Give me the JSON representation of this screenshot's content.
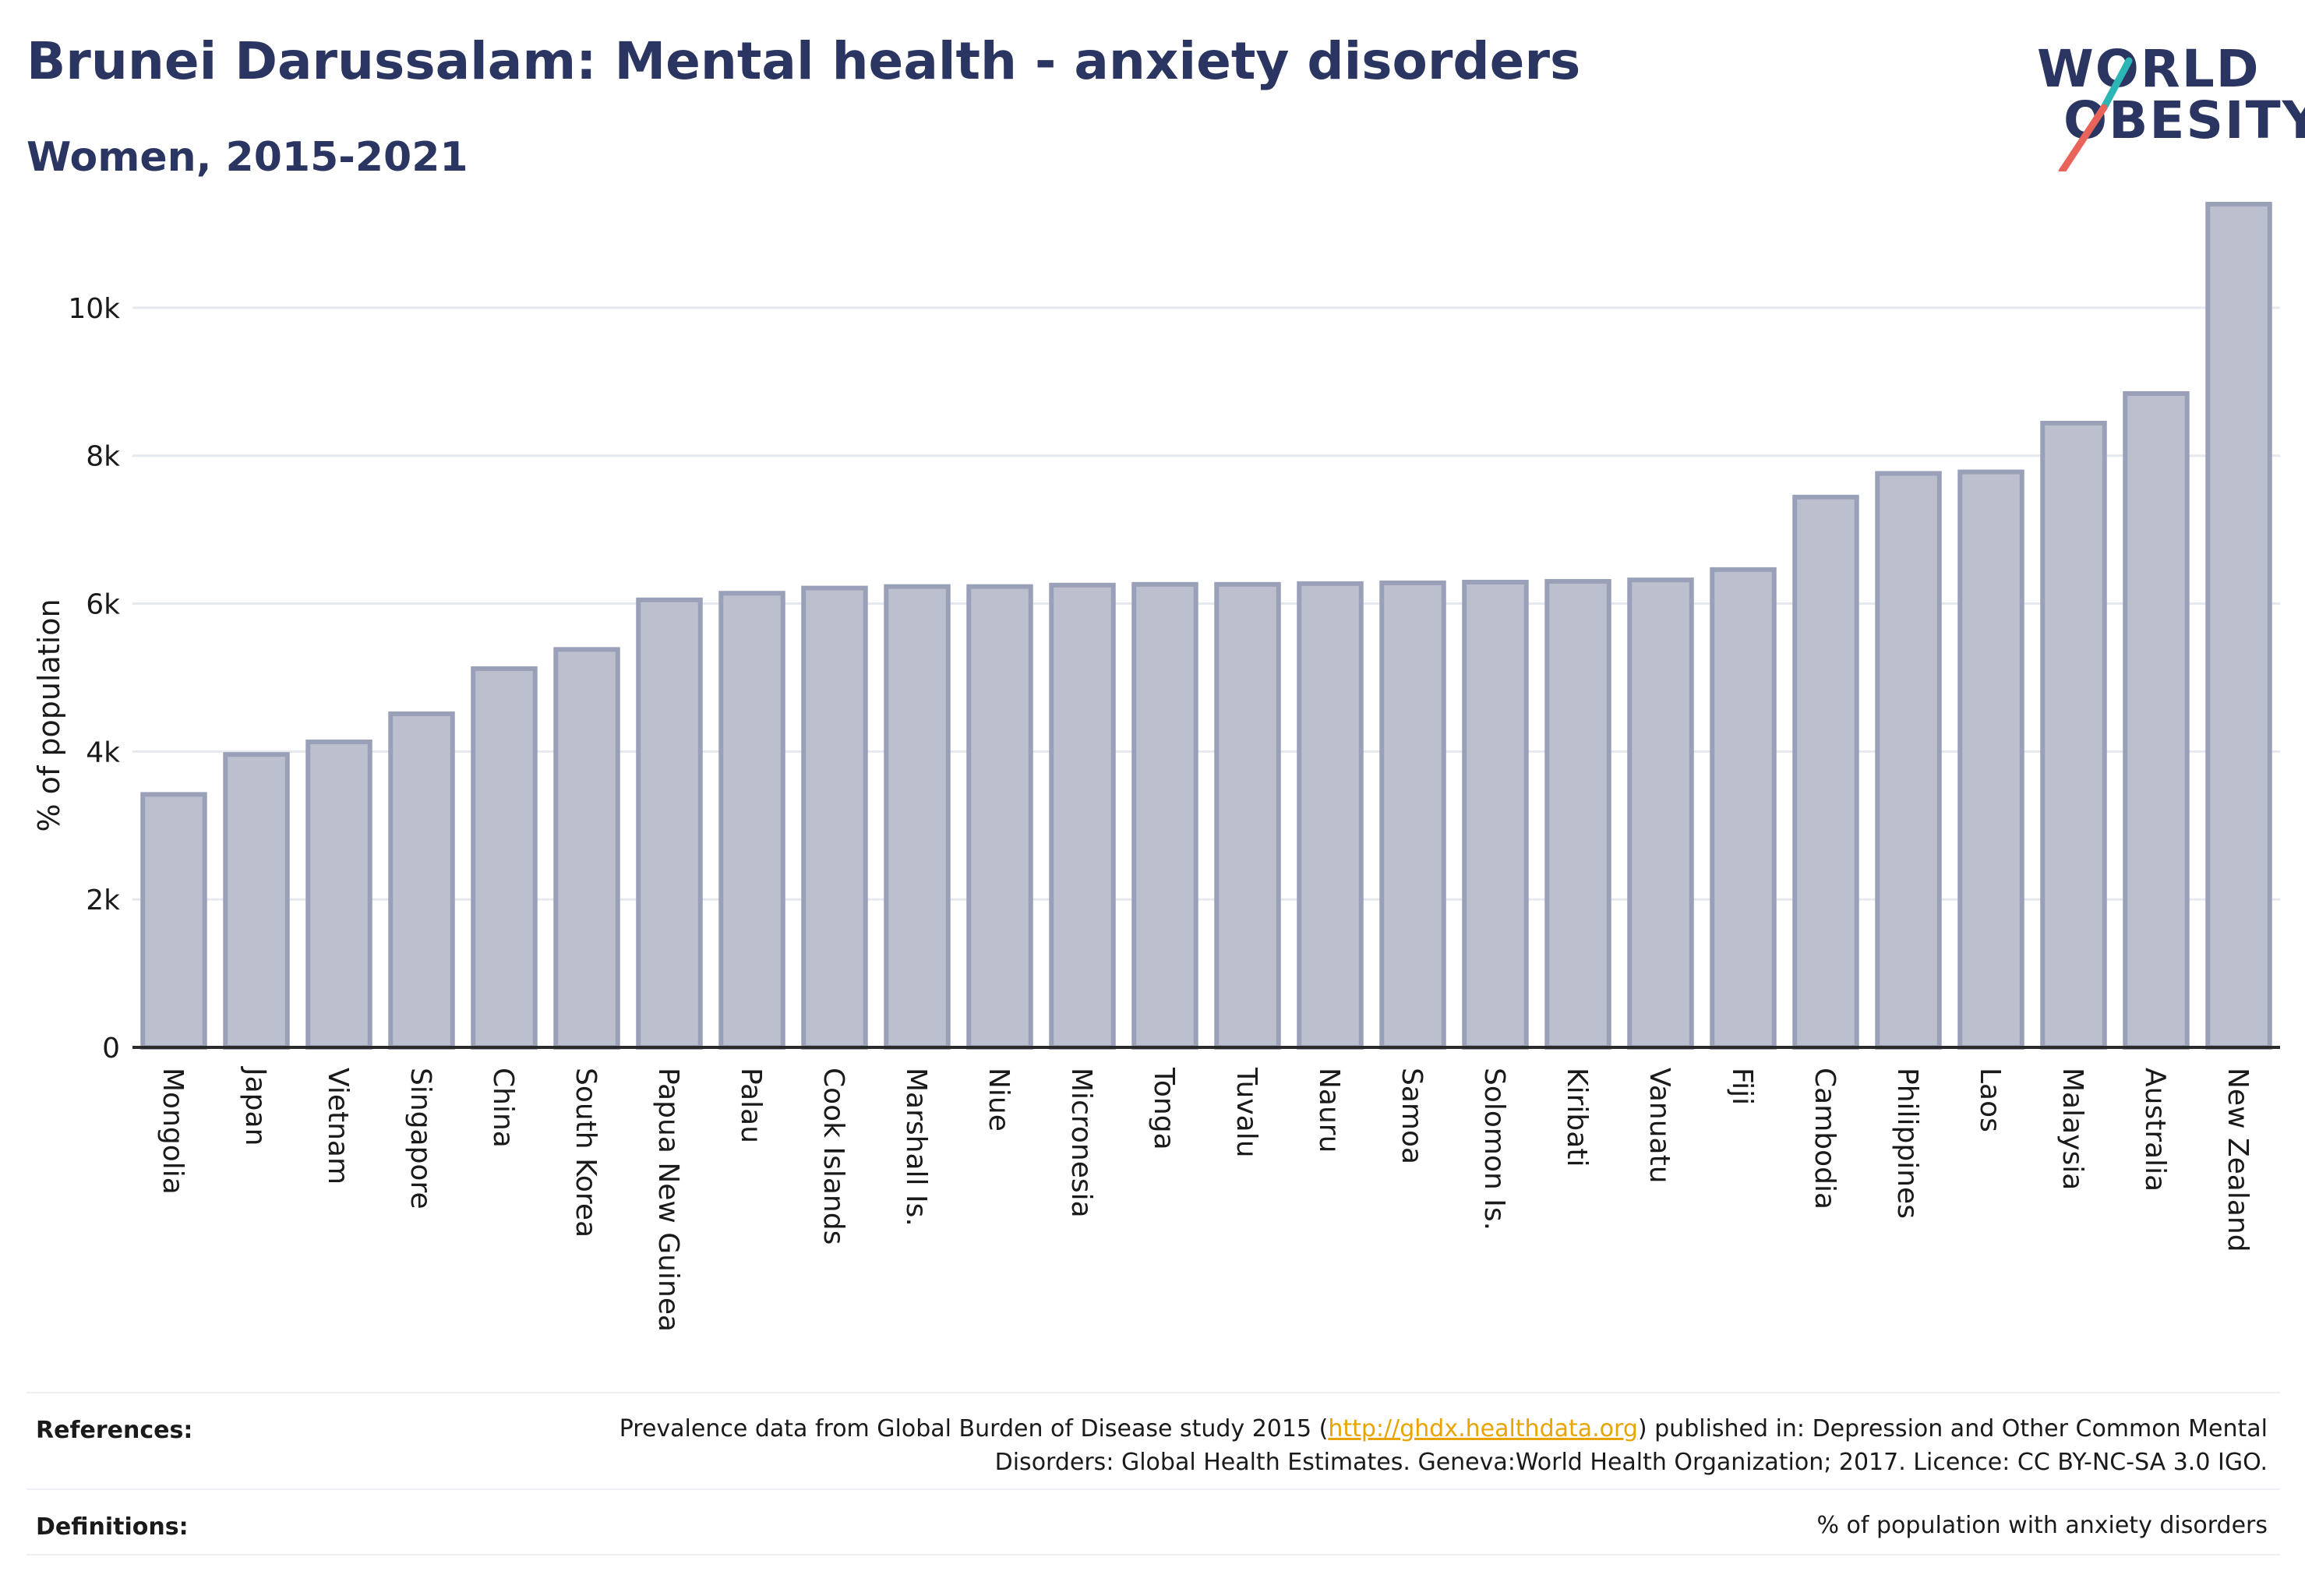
{
  "header": {
    "title": "Brunei Darussalam: Mental health - anxiety disorders",
    "subtitle": "Women, 2015-2021"
  },
  "logo": {
    "line1": "WORLD",
    "line2": "OBESITY",
    "accent_colors": [
      "#2bb5b5",
      "#e8645a"
    ]
  },
  "colors": {
    "bar_fill": "#bcc0ce",
    "bar_stroke": "#9aa0b8",
    "grid": "#e6e8ef",
    "axis": "#2b2b2b",
    "title": "#2b3561"
  },
  "chart_data": {
    "type": "bar",
    "title": "Brunei Darussalam: Mental health - anxiety disorders",
    "subtitle": "Women, 2015-2021",
    "xlabel": "",
    "ylabel": "% of population",
    "ylim": [
      0,
      11400
    ],
    "yticks": [
      0,
      2000,
      4000,
      6000,
      8000,
      10000
    ],
    "ytick_labels": [
      "0",
      "2k",
      "4k",
      "6k",
      "8k",
      "10k"
    ],
    "grid": true,
    "categories": [
      "Mongolia",
      "Japan",
      "Vietnam",
      "Singapore",
      "China",
      "South Korea",
      "Papua New Guinea",
      "Palau",
      "Cook Islands",
      "Marshall Is.",
      "Niue",
      "Micronesia",
      "Tonga",
      "Tuvalu",
      "Nauru",
      "Samoa",
      "Solomon Is.",
      "Kiribati",
      "Vanuatu",
      "Fiji",
      "Cambodia",
      "Philippines",
      "Laos",
      "Malaysia",
      "Australia",
      "New Zealand"
    ],
    "values": [
      3420,
      3960,
      4130,
      4510,
      5120,
      5380,
      6050,
      6140,
      6210,
      6230,
      6230,
      6250,
      6260,
      6260,
      6270,
      6280,
      6290,
      6300,
      6320,
      6460,
      7440,
      7760,
      7780,
      8440,
      8840,
      11400
    ]
  },
  "footer": {
    "references_label": "References:",
    "references_pre": "Prevalence data from Global Burden of Disease study 2015 (",
    "references_link": "http://ghdx.healthdata.org",
    "references_post": ") published in: Depression and Other Common Mental Disorders: Global Health Estimates. Geneva:World Health Organization; 2017. Licence: CC BY-NC-SA 3.0 IGO.",
    "definitions_label": "Definitions:",
    "definitions_text": "% of population with anxiety disorders"
  }
}
